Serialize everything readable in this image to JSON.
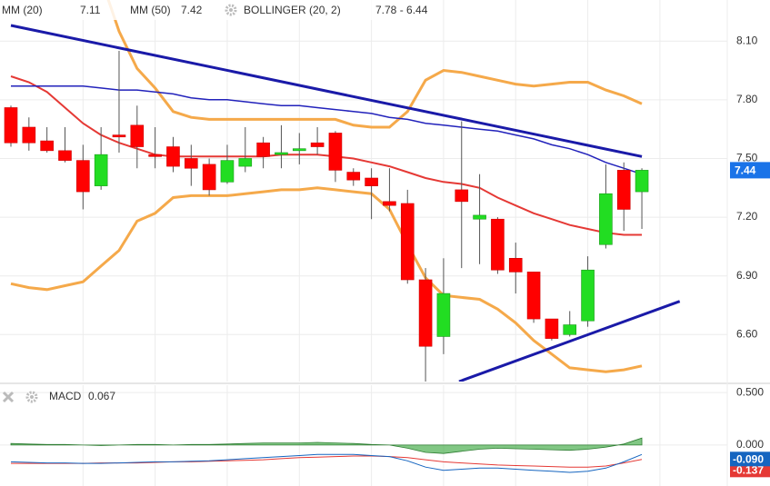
{
  "chart_data": [
    {
      "type": "candlestick",
      "up_color": "#22dd22",
      "down_color": "#ff0000",
      "wick_color": "#555555",
      "grid": true,
      "open": [
        7.76,
        7.66,
        7.59,
        7.54,
        7.49,
        7.36,
        7.62,
        7.67,
        7.52,
        7.56,
        7.5,
        7.47,
        7.38,
        7.46,
        7.58,
        7.52,
        7.54,
        7.58,
        7.63,
        7.43,
        7.4,
        7.28,
        7.27,
        6.88,
        6.59,
        7.34,
        7.19,
        7.19,
        6.99,
        6.92,
        6.68,
        6.6,
        6.67,
        7.06,
        7.44,
        7.33
      ],
      "high": [
        7.77,
        7.71,
        7.66,
        7.66,
        7.57,
        7.66,
        8.05,
        7.77,
        7.66,
        7.61,
        7.57,
        7.5,
        7.57,
        7.66,
        7.61,
        7.67,
        7.63,
        7.66,
        7.64,
        7.45,
        7.45,
        7.45,
        7.34,
        6.94,
        6.99,
        7.69,
        7.42,
        7.2,
        7.07,
        6.92,
        6.68,
        6.72,
        7.0,
        7.47,
        7.48,
        7.45
      ],
      "low": [
        7.56,
        7.54,
        7.53,
        7.48,
        7.24,
        7.34,
        7.53,
        7.45,
        7.45,
        7.43,
        7.36,
        7.31,
        7.37,
        7.43,
        7.45,
        7.45,
        7.47,
        7.52,
        7.38,
        7.36,
        7.19,
        7.23,
        6.86,
        6.36,
        6.5,
        6.94,
        6.96,
        6.91,
        6.81,
        6.66,
        6.57,
        6.59,
        6.64,
        7.04,
        7.13,
        7.14
      ],
      "close": [
        7.58,
        7.58,
        7.54,
        7.49,
        7.33,
        7.52,
        7.61,
        7.56,
        7.51,
        7.46,
        7.45,
        7.34,
        7.49,
        7.5,
        7.51,
        7.53,
        7.55,
        7.56,
        7.44,
        7.39,
        7.36,
        7.26,
        6.88,
        6.54,
        6.81,
        7.28,
        7.21,
        6.93,
        6.92,
        6.68,
        6.58,
        6.65,
        6.93,
        7.32,
        7.24,
        7.44
      ],
      "overlays": [
        {
          "name": "MM (20)",
          "legend_value": 7.11,
          "color": "#e53935",
          "width": 2,
          "values": [
            7.92,
            7.89,
            7.84,
            7.76,
            7.68,
            7.62,
            7.58,
            7.55,
            7.52,
            7.51,
            7.51,
            7.51,
            7.51,
            7.51,
            7.51,
            7.52,
            7.52,
            7.52,
            7.51,
            7.5,
            7.48,
            7.46,
            7.43,
            7.4,
            7.38,
            7.37,
            7.35,
            7.3,
            7.26,
            7.22,
            7.19,
            7.16,
            7.14,
            7.12,
            7.11,
            7.11
          ]
        },
        {
          "name": "MM (50)",
          "legend_value": 7.42,
          "color": "#2222bb",
          "width": 1.5,
          "values": [
            7.87,
            7.87,
            7.87,
            7.87,
            7.87,
            7.86,
            7.85,
            7.85,
            7.84,
            7.83,
            7.81,
            7.8,
            7.8,
            7.79,
            7.78,
            7.77,
            7.77,
            7.76,
            7.75,
            7.74,
            7.73,
            7.71,
            7.7,
            7.68,
            7.67,
            7.66,
            7.65,
            7.64,
            7.62,
            7.6,
            7.57,
            7.55,
            7.52,
            7.48,
            7.45,
            7.42
          ]
        },
        {
          "name": "BOLLINGER (20, 2)",
          "legend_value": "7.78 - 6.44",
          "color": "#f5a94a",
          "width": 3,
          "values": [
            null,
            null,
            null,
            null,
            null,
            8.42,
            8.15,
            7.96,
            7.86,
            7.74,
            7.71,
            7.7,
            7.7,
            7.7,
            7.7,
            7.7,
            7.7,
            7.7,
            7.7,
            7.67,
            7.66,
            7.66,
            7.74,
            7.9,
            7.95,
            7.94,
            7.92,
            7.9,
            7.88,
            7.87,
            7.88,
            7.89,
            7.89,
            7.85,
            7.82,
            7.78
          ],
          "lower": [
            6.86,
            6.84,
            6.83,
            6.85,
            6.87,
            6.95,
            7.03,
            7.18,
            7.22,
            7.3,
            7.31,
            7.31,
            7.31,
            7.32,
            7.33,
            7.34,
            7.34,
            7.35,
            7.34,
            7.33,
            7.32,
            7.24,
            7.06,
            6.89,
            6.8,
            6.79,
            6.78,
            6.73,
            6.66,
            6.57,
            6.5,
            6.43,
            6.42,
            6.41,
            6.42,
            6.44
          ]
        }
      ],
      "trendlines": [
        {
          "color": "#1a1aa8",
          "x": [
            0,
            35
          ],
          "values": [
            8.18,
            7.51
          ]
        },
        {
          "color": "#1a1aa8",
          "x": [
            24.86,
            37.1
          ],
          "values": [
            6.36,
            6.77
          ]
        }
      ],
      "last_price": 7.44,
      "last_price_color": "#1a73e8",
      "ylim": [
        6.36,
        8.31
      ],
      "yticks": [
        {
          "value": 8.1,
          "label": "8.10"
        },
        {
          "value": 7.8,
          "label": "7.80"
        },
        {
          "value": 7.5,
          "label": "7.50"
        },
        {
          "value": 7.2,
          "label": "7.20"
        },
        {
          "value": 6.9,
          "label": "6.90"
        },
        {
          "value": 6.6,
          "label": "6.60"
        }
      ]
    },
    {
      "type": "macd",
      "title": "MACD",
      "legend_value": 0.067,
      "histogram": {
        "color": "#4caf50",
        "values": [
          0.015,
          0.01,
          0.005,
          0.005,
          0,
          -0.005,
          0,
          0.005,
          0.005,
          0,
          0.005,
          0.005,
          0.01,
          0.015,
          0.02,
          0.02,
          0.02,
          0.025,
          0.02,
          0.015,
          0.005,
          0,
          -0.03,
          -0.07,
          -0.08,
          -0.06,
          -0.04,
          -0.03,
          -0.035,
          -0.04,
          -0.045,
          -0.05,
          -0.04,
          -0.02,
          0.01,
          0.067
        ]
      },
      "signal": {
        "color": "#e53935",
        "label": {
          "value": -0.137,
          "label": "-0.137"
        },
        "values": [
          -0.175,
          -0.175,
          -0.175,
          -0.175,
          -0.175,
          -0.17,
          -0.17,
          -0.17,
          -0.165,
          -0.16,
          -0.16,
          -0.155,
          -0.15,
          -0.145,
          -0.14,
          -0.13,
          -0.12,
          -0.115,
          -0.11,
          -0.105,
          -0.105,
          -0.11,
          -0.12,
          -0.14,
          -0.16,
          -0.17,
          -0.18,
          -0.19,
          -0.195,
          -0.2,
          -0.205,
          -0.21,
          -0.21,
          -0.2,
          -0.17,
          -0.137
        ]
      },
      "macd": {
        "color": "#1565c0",
        "label": {
          "value": -0.09,
          "label": "-0.090"
        },
        "values": [
          -0.16,
          -0.165,
          -0.17,
          -0.17,
          -0.175,
          -0.175,
          -0.17,
          -0.165,
          -0.16,
          -0.16,
          -0.155,
          -0.15,
          -0.14,
          -0.13,
          -0.12,
          -0.11,
          -0.1,
          -0.09,
          -0.09,
          -0.09,
          -0.1,
          -0.11,
          -0.15,
          -0.21,
          -0.24,
          -0.23,
          -0.22,
          -0.22,
          -0.23,
          -0.24,
          -0.25,
          -0.26,
          -0.25,
          -0.22,
          -0.16,
          -0.09
        ]
      },
      "ylim": [
        -0.39,
        0.57
      ],
      "yticks": [
        {
          "value": 0.5,
          "label": "0.500"
        },
        {
          "value": 0,
          "label": "0.000"
        }
      ]
    }
  ]
}
